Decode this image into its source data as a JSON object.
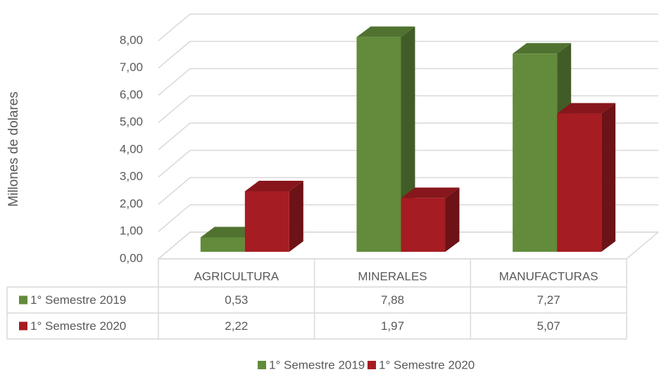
{
  "chart_data": {
    "type": "bar3d",
    "y_axis_label": "Millones de dolares",
    "categories": [
      "AGRICULTURA",
      "MINERALES",
      "MANUFACTURAS"
    ],
    "series": [
      {
        "name": "1° Semestre 2019",
        "color": "#628b3b",
        "values": [
          0.53,
          7.88,
          7.27
        ],
        "value_labels": [
          "0,53",
          "7,88",
          "7,27"
        ]
      },
      {
        "name": "1° Semestre 2020",
        "color": "#a51c22",
        "values": [
          2.22,
          1.97,
          5.07
        ],
        "value_labels": [
          "2,22",
          "1,97",
          "5,07"
        ]
      }
    ],
    "ylim": [
      0,
      8
    ],
    "yticks": [
      {
        "value": 0,
        "label": "0,00"
      },
      {
        "value": 1,
        "label": "1,00"
      },
      {
        "value": 2,
        "label": "2,00"
      },
      {
        "value": 3,
        "label": "3,00"
      },
      {
        "value": 4,
        "label": "4,00"
      },
      {
        "value": 5,
        "label": "5,00"
      },
      {
        "value": 6,
        "label": "6,00"
      },
      {
        "value": 7,
        "label": "7,00"
      },
      {
        "value": 8,
        "label": "8,00"
      }
    ],
    "grid": true,
    "data_table": true,
    "legend": "bottom"
  }
}
